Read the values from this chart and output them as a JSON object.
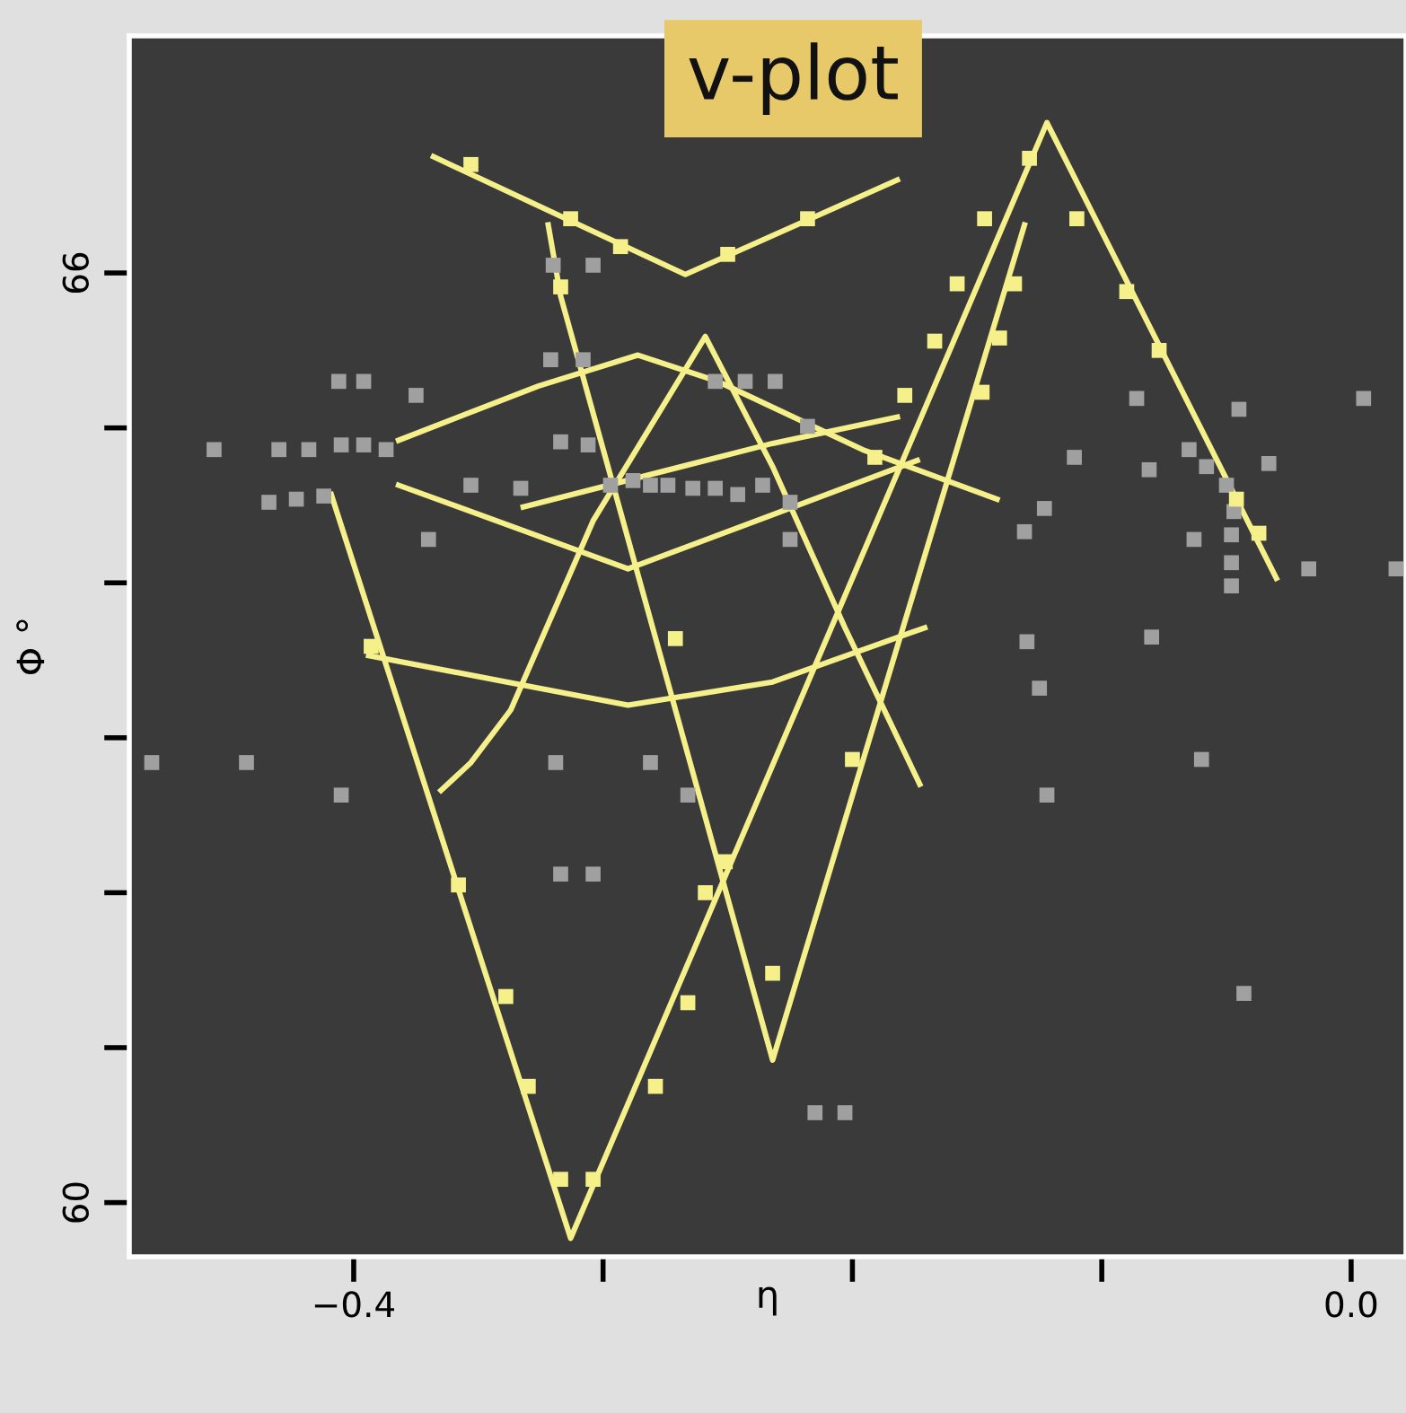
{
  "chart_data": {
    "type": "scatter",
    "xlabel": "η",
    "ylabel": "Φ °",
    "annotations": [
      "v-plot"
    ],
    "xlim": [
      -0.49,
      0.022
    ],
    "ylim": [
      59.65,
      67.53
    ],
    "xticks": [
      {
        "value": -0.4,
        "label": "−0.4"
      },
      {
        "value": -0.3,
        "label": null
      },
      {
        "value": -0.2,
        "label": null
      },
      {
        "value": -0.1,
        "label": null
      },
      {
        "value": 0.0,
        "label": "0.0"
      }
    ],
    "yticks": [
      60,
      {
        "value": 61,
        "label": null
      },
      {
        "value": 62,
        "label": null
      },
      {
        "value": 63,
        "label": null
      },
      {
        "value": 64,
        "label": null
      },
      {
        "value": 65,
        "label": null
      },
      66
    ],
    "grid": false,
    "marker": "square",
    "series": [
      {
        "color": "#a0a0a0",
        "x": [
          -0.456,
          -0.43,
          -0.418,
          -0.405,
          -0.396,
          -0.387,
          -0.434,
          -0.423,
          -0.412,
          -0.406,
          -0.396,
          -0.375,
          -0.37,
          -0.353,
          -0.333,
          -0.32,
          -0.304,
          -0.321,
          -0.308,
          -0.317,
          -0.306,
          -0.297,
          -0.288,
          -0.281,
          -0.274,
          -0.264,
          -0.255,
          -0.246,
          -0.236,
          -0.225,
          -0.255,
          -0.243,
          -0.231,
          -0.225,
          -0.218,
          -0.086,
          -0.065,
          -0.045,
          -0.033,
          0.005,
          -0.111,
          -0.081,
          -0.058,
          -0.05,
          -0.047,
          -0.048,
          -0.048,
          -0.048,
          -0.063,
          -0.017,
          0.018,
          -0.123,
          -0.131,
          -0.13,
          -0.08,
          -0.125,
          -0.481,
          -0.443,
          -0.405,
          -0.319,
          -0.281,
          -0.266,
          -0.317,
          -0.304,
          -0.122,
          -0.06,
          -0.043,
          -0.215,
          -0.203
        ],
        "values": [
          64.86,
          64.86,
          64.86,
          64.89,
          64.89,
          64.86,
          64.52,
          64.54,
          64.56,
          65.3,
          65.3,
          65.21,
          64.28,
          64.63,
          64.61,
          66.05,
          66.05,
          65.44,
          65.44,
          64.91,
          64.89,
          64.63,
          64.66,
          64.63,
          64.63,
          64.61,
          64.61,
          64.57,
          64.63,
          64.52,
          65.3,
          65.3,
          65.3,
          64.28,
          65.01,
          65.19,
          64.86,
          65.12,
          64.77,
          65.19,
          64.81,
          64.73,
          64.75,
          64.63,
          64.46,
          64.31,
          64.13,
          63.98,
          64.28,
          64.09,
          64.09,
          64.48,
          64.33,
          63.62,
          63.65,
          63.32,
          62.84,
          62.84,
          62.63,
          62.84,
          62.84,
          62.63,
          62.12,
          62.12,
          62.63,
          62.86,
          61.35,
          60.58,
          60.58
        ]
      },
      {
        "type": "line",
        "color": "#f5f08a",
        "marker": "none",
        "x": [
          -0.368,
          -0.267,
          -0.182
        ],
        "values": [
          66.75,
          65.99,
          66.6
        ]
      },
      {
        "type": "line",
        "color": "#f5f08a",
        "marker": "none",
        "x": [
          -0.409,
          -0.313,
          -0.122,
          -0.03
        ],
        "values": [
          64.57,
          59.77,
          66.97,
          64.03
        ]
      },
      {
        "type": "line",
        "color": "#f5f08a",
        "marker": "none",
        "x": [
          -0.322,
          -0.317,
          -0.232,
          -0.131
        ],
        "values": [
          66.31,
          65.85,
          60.92,
          66.31
        ]
      },
      {
        "type": "line",
        "color": "#f5f08a",
        "marker": "none",
        "x": [
          -0.365,
          -0.353,
          -0.337,
          -0.304,
          -0.259,
          -0.232,
          -0.203,
          -0.173
        ],
        "values": [
          62.66,
          62.84,
          63.18,
          64.4,
          65.59,
          64.75,
          63.71,
          62.7
        ]
      },
      {
        "type": "line",
        "color": "#f5f08a",
        "marker": "none",
        "x": [
          -0.382,
          -0.326,
          -0.286,
          -0.254,
          -0.196,
          -0.142
        ],
        "values": [
          64.92,
          65.27,
          65.47,
          65.3,
          64.86,
          64.54
        ]
      },
      {
        "type": "line",
        "color": "#f5f08a",
        "marker": "none",
        "x": [
          -0.382,
          -0.29,
          -0.232,
          -0.174
        ],
        "values": [
          64.63,
          64.09,
          64.44,
          64.79
        ]
      },
      {
        "type": "line",
        "color": "#f5f08a",
        "marker": "none",
        "x": [
          -0.394,
          -0.29,
          -0.232,
          -0.171
        ],
        "values": [
          63.53,
          63.21,
          63.36,
          63.71
        ]
      },
      {
        "type": "line",
        "color": "#f5f08a",
        "marker": "none",
        "x": [
          -0.332,
          -0.232,
          -0.182
        ],
        "values": [
          64.49,
          64.9,
          65.07
        ]
      },
      {
        "color": "#f5f08a",
        "x": [
          -0.353,
          -0.313,
          -0.293,
          -0.25,
          -0.218,
          -0.129,
          -0.147,
          -0.158,
          -0.167,
          -0.179,
          -0.191,
          -0.11,
          -0.09,
          -0.077,
          -0.046,
          -0.037,
          -0.135,
          -0.141,
          -0.148,
          -0.317,
          -0.393,
          -0.358,
          -0.339,
          -0.33,
          -0.317,
          -0.304,
          -0.279,
          -0.266,
          -0.259,
          -0.271,
          -0.251,
          -0.232,
          -0.2
        ],
        "values": [
          66.7,
          66.35,
          66.17,
          66.12,
          66.35,
          66.74,
          66.35,
          65.93,
          65.56,
          65.21,
          64.81,
          66.35,
          65.88,
          65.5,
          64.54,
          64.32,
          65.93,
          65.58,
          65.23,
          65.91,
          63.59,
          62.05,
          61.33,
          60.75,
          60.15,
          60.15,
          60.75,
          61.29,
          62.0,
          63.64,
          62.2,
          61.48,
          62.86
        ]
      }
    ]
  }
}
